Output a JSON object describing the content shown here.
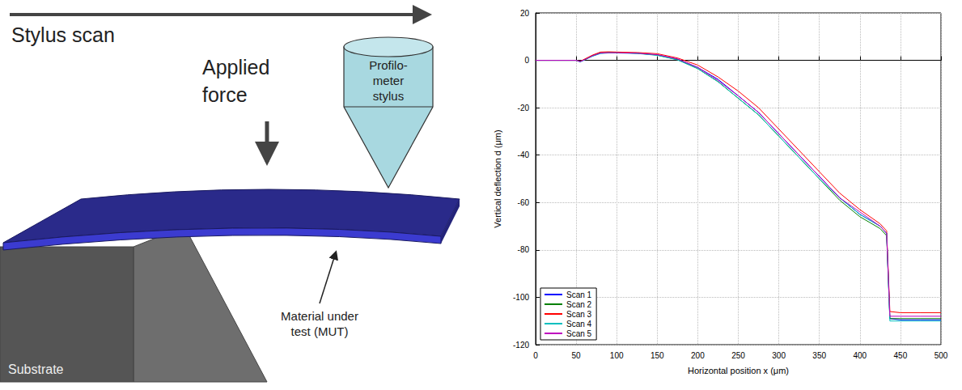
{
  "diagram": {
    "scan_label": "Stylus scan",
    "force_label": [
      "Applied",
      "force"
    ],
    "stylus_label": [
      "Profilo-",
      "meter",
      "stylus"
    ],
    "mut_label": [
      "Material under",
      "test (MUT)"
    ],
    "substrate_label": "Substrate"
  },
  "chart_data": {
    "type": "line",
    "x_label": "Horizontal position x (μm)",
    "y_label": "Vertical deflection d (μm)",
    "x": [
      0,
      25,
      50,
      55,
      62,
      70,
      80,
      90,
      100,
      125,
      150,
      175,
      200,
      225,
      250,
      275,
      300,
      325,
      350,
      375,
      400,
      425,
      433,
      437,
      450,
      475,
      500
    ],
    "series": [
      {
        "name": "Scan 1",
        "color": "#0000ff",
        "values": [
          0,
          0,
          0,
          -0.6,
          0.5,
          1.8,
          3,
          3.2,
          3.2,
          3,
          2.3,
          0.5,
          -3,
          -8,
          -15,
          -22,
          -31,
          -40,
          -49,
          -58,
          -65,
          -70,
          -73,
          -109,
          -109.5,
          -109.5,
          -109.5
        ]
      },
      {
        "name": "Scan 2",
        "color": "#008000",
        "values": [
          0,
          0,
          0,
          -0.5,
          0.6,
          2,
          3.2,
          3.3,
          3.3,
          3,
          2.2,
          0.3,
          -3.5,
          -9,
          -16,
          -23,
          -32,
          -41,
          -50,
          -59,
          -66,
          -71,
          -74,
          -109,
          -109,
          -109,
          -109
        ]
      },
      {
        "name": "Scan 3",
        "color": "#ff0000",
        "values": [
          0,
          0,
          0,
          -0.4,
          0.8,
          2.2,
          3.5,
          3.6,
          3.5,
          3.3,
          2.8,
          1,
          -2,
          -7,
          -13,
          -20,
          -29,
          -38,
          -47,
          -56,
          -63,
          -69,
          -72,
          -106,
          -106.5,
          -106.5,
          -106.5
        ]
      },
      {
        "name": "Scan 4",
        "color": "#00bfbf",
        "values": [
          0,
          0,
          0,
          -0.6,
          0.4,
          1.7,
          2.9,
          3.1,
          3.1,
          2.9,
          2.1,
          0.2,
          -3.5,
          -9,
          -16,
          -23,
          -32,
          -41,
          -50,
          -58,
          -65,
          -70,
          -73,
          -110,
          -110,
          -110,
          -110
        ]
      },
      {
        "name": "Scan 5",
        "color": "#bf00bf",
        "values": [
          0,
          0,
          0,
          -0.5,
          0.5,
          1.9,
          3.1,
          3.2,
          3.2,
          3,
          2.4,
          0.6,
          -3,
          -8.5,
          -15,
          -22,
          -31,
          -40,
          -49,
          -58,
          -64,
          -70,
          -73,
          -108,
          -108,
          -108,
          -108
        ]
      }
    ],
    "xlim": [
      0,
      500
    ],
    "xticks": [
      0,
      50,
      100,
      150,
      200,
      250,
      300,
      350,
      400,
      450,
      500
    ],
    "ylim": [
      -120,
      20
    ],
    "yticks": [
      -120,
      -100,
      -80,
      -60,
      -40,
      -20,
      0,
      20
    ],
    "grid": true,
    "legend": "lower left"
  }
}
